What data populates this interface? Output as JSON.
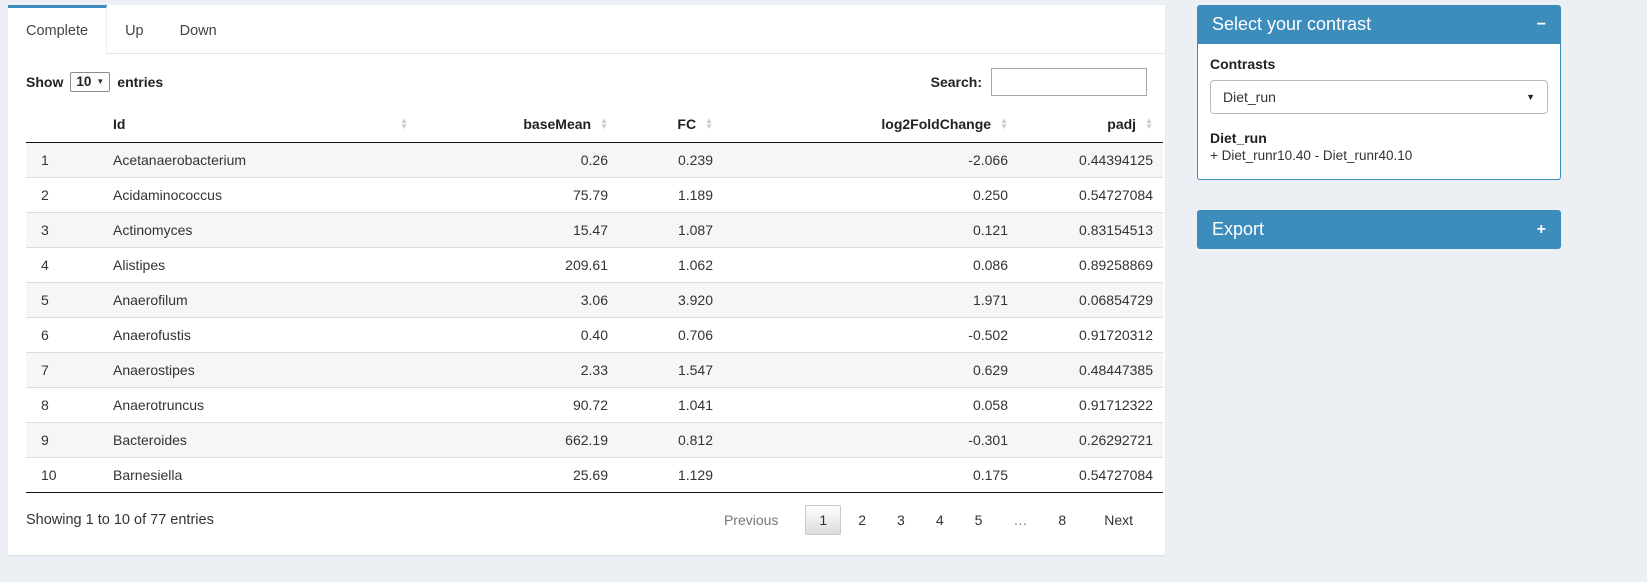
{
  "colors": {
    "accent": "#3c8dbc",
    "page_background": "#ecf0f5",
    "stripe": "#f6f6f7",
    "dark_rule": "#111111"
  },
  "tabs": [
    {
      "label": "Complete",
      "active": true
    },
    {
      "label": "Up",
      "active": false
    },
    {
      "label": "Down",
      "active": false
    }
  ],
  "length_control": {
    "prefix": "Show",
    "value": "10",
    "suffix": "entries"
  },
  "search": {
    "label": "Search:",
    "value": ""
  },
  "table": {
    "columns": [
      "Id",
      "baseMean",
      "FC",
      "log2FoldChange",
      "padj"
    ],
    "rows": [
      [
        "1",
        "Acetanaerobacterium",
        "0.26",
        "0.239",
        "-2.066",
        "0.44394125"
      ],
      [
        "2",
        "Acidaminococcus",
        "75.79",
        "1.189",
        "0.250",
        "0.54727084"
      ],
      [
        "3",
        "Actinomyces",
        "15.47",
        "1.087",
        "0.121",
        "0.83154513"
      ],
      [
        "4",
        "Alistipes",
        "209.61",
        "1.062",
        "0.086",
        "0.89258869"
      ],
      [
        "5",
        "Anaerofilum",
        "3.06",
        "3.920",
        "1.971",
        "0.06854729"
      ],
      [
        "6",
        "Anaerofustis",
        "0.40",
        "0.706",
        "-0.502",
        "0.91720312"
      ],
      [
        "7",
        "Anaerostipes",
        "2.33",
        "1.547",
        "0.629",
        "0.48447385"
      ],
      [
        "8",
        "Anaerotruncus",
        "90.72",
        "1.041",
        "0.058",
        "0.91712322"
      ],
      [
        "9",
        "Bacteroides",
        "662.19",
        "0.812",
        "-0.301",
        "0.26292721"
      ],
      [
        "10",
        "Barnesiella",
        "25.69",
        "1.129",
        "0.175",
        "0.54727084"
      ]
    ]
  },
  "footer": {
    "info": "Showing 1 to 10 of 77 entries",
    "pagination": {
      "previous": "Previous",
      "pages": [
        "1",
        "2",
        "3",
        "4",
        "5",
        "…",
        "8"
      ],
      "active_page": "1",
      "ellipsis": "…",
      "next": "Next"
    }
  },
  "sidebar": {
    "contrast_panel": {
      "title": "Select your contrast",
      "collapse_icon": "−",
      "label": "Contrasts",
      "select_value": "Diet_run",
      "contrast_name": "Diet_run",
      "contrast_formula": "+ Diet_runr10.40 - Diet_runr40.10"
    },
    "export_panel": {
      "title": "Export",
      "collapse_icon": "+"
    }
  }
}
